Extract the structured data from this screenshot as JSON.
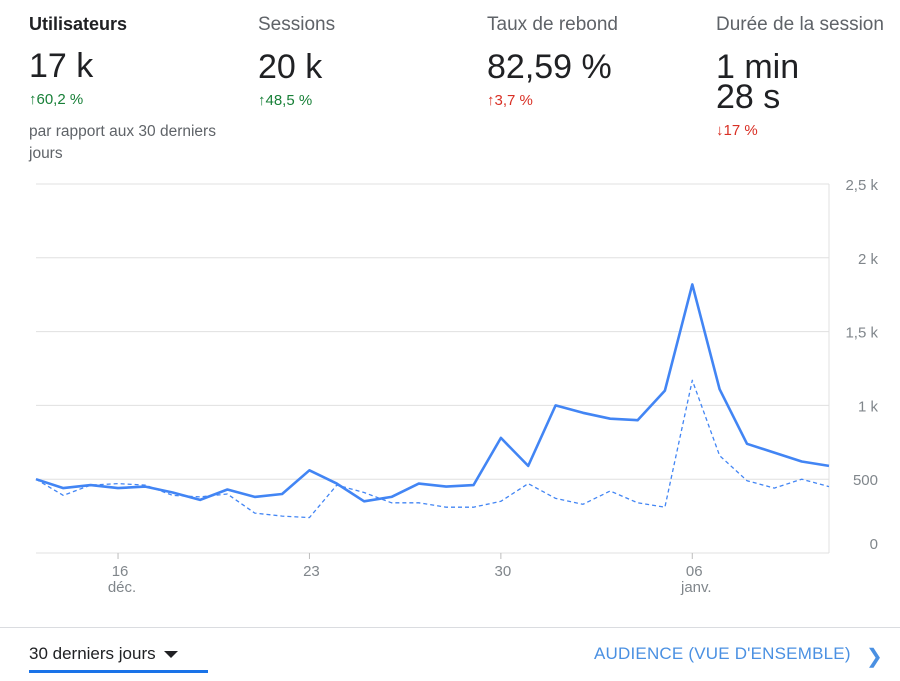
{
  "metrics": [
    {
      "label": "Utilisateurs",
      "value": "17 k",
      "delta": "60,2 %",
      "direction": "up",
      "status": "good"
    },
    {
      "label": "Sessions",
      "value": "20 k",
      "delta": "48,5 %",
      "direction": "up",
      "status": "good"
    },
    {
      "label": "Taux de rebond",
      "value": "82,59 %",
      "delta": "3,7 %",
      "direction": "up",
      "status": "bad"
    },
    {
      "label": "Durée de la session",
      "value": "1 min\n28 s",
      "delta": "17 %",
      "direction": "down",
      "status": "bad"
    }
  ],
  "compare_text": "par rapport aux 30 derniers jours",
  "arrows": {
    "up": "↑",
    "down": "↓"
  },
  "footer": {
    "range_label": "30 derniers jours",
    "link_label": "AUDIENCE (VUE D'ENSEMBLE)"
  },
  "chart_data": {
    "type": "line",
    "y_ticks": [
      "0",
      "500",
      "1 k",
      "1,5 k",
      "2 k",
      "2,5 k"
    ],
    "y_values": [
      0,
      500,
      1000,
      1500,
      2000,
      2500
    ],
    "ylim": [
      0,
      2500
    ],
    "x_ticks": [
      {
        "index": 3,
        "label": "16",
        "sublabel": "déc."
      },
      {
        "index": 10,
        "label": "23",
        "sublabel": ""
      },
      {
        "index": 17,
        "label": "30",
        "sublabel": ""
      },
      {
        "index": 24,
        "label": "06",
        "sublabel": "janv."
      }
    ],
    "series": [
      {
        "style": "solid",
        "color": "#4285f4",
        "values": [
          500,
          440,
          460,
          440,
          450,
          410,
          360,
          430,
          380,
          400,
          560,
          470,
          350,
          380,
          470,
          450,
          460,
          780,
          590,
          1000,
          950,
          910,
          900,
          1100,
          1820,
          1110,
          740,
          680,
          620,
          590
        ]
      },
      {
        "style": "dashed",
        "color": "#4285f4",
        "values": [
          500,
          390,
          460,
          470,
          460,
          390,
          380,
          400,
          270,
          250,
          240,
          460,
          410,
          340,
          340,
          310,
          310,
          350,
          470,
          370,
          330,
          420,
          340,
          310,
          1170,
          660,
          490,
          440,
          500,
          450
        ]
      }
    ]
  }
}
